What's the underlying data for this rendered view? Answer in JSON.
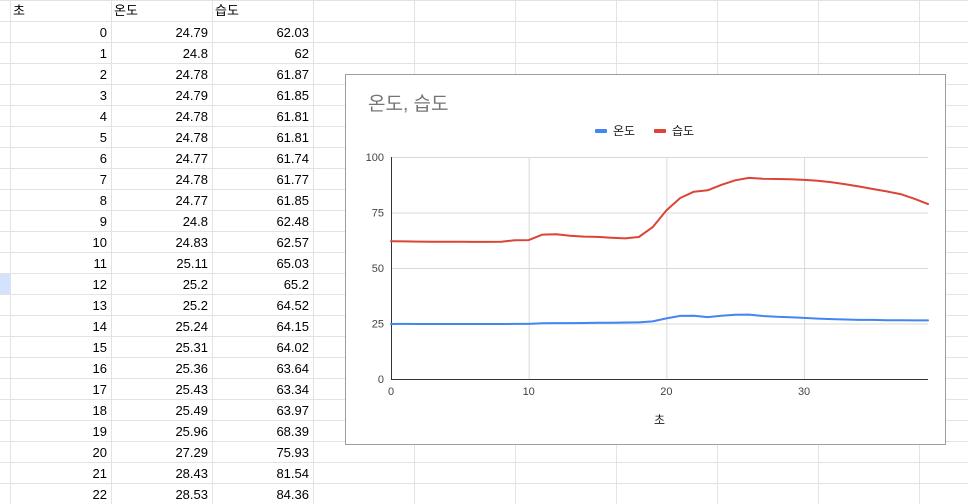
{
  "sheet": {
    "headers": [
      "초",
      "온도",
      "습도"
    ],
    "rows": [
      [
        "0",
        "24.79",
        "62.03"
      ],
      [
        "1",
        "24.8",
        "62"
      ],
      [
        "2",
        "24.78",
        "61.87"
      ],
      [
        "3",
        "24.79",
        "61.85"
      ],
      [
        "4",
        "24.78",
        "61.81"
      ],
      [
        "5",
        "24.78",
        "61.81"
      ],
      [
        "6",
        "24.77",
        "61.74"
      ],
      [
        "7",
        "24.78",
        "61.77"
      ],
      [
        "8",
        "24.77",
        "61.85"
      ],
      [
        "9",
        "24.8",
        "62.48"
      ],
      [
        "10",
        "24.83",
        "62.57"
      ],
      [
        "11",
        "25.11",
        "65.03"
      ],
      [
        "12",
        "25.2",
        "65.2"
      ],
      [
        "13",
        "25.2",
        "64.52"
      ],
      [
        "14",
        "25.24",
        "64.15"
      ],
      [
        "15",
        "25.31",
        "64.02"
      ],
      [
        "16",
        "25.36",
        "63.64"
      ],
      [
        "17",
        "25.43",
        "63.34"
      ],
      [
        "18",
        "25.49",
        "63.97"
      ],
      [
        "19",
        "25.96",
        "68.39"
      ],
      [
        "20",
        "27.29",
        "75.93"
      ],
      [
        "21",
        "28.43",
        "81.54"
      ],
      [
        "22",
        "28.53",
        "84.36"
      ]
    ],
    "selected_row_index": 12,
    "colors": {
      "grid": "#e2e3e3",
      "selected_row_header": "#d3e3fd"
    }
  },
  "chart_data": {
    "type": "line",
    "title": "온도, 습도",
    "xlabel": "초",
    "ylabel": "",
    "xlim": [
      0,
      39
    ],
    "ylim": [
      0,
      100
    ],
    "x_ticks": [
      0,
      10,
      20,
      30
    ],
    "y_ticks": [
      0,
      25,
      50,
      75,
      100
    ],
    "legend_position": "top",
    "grid": true,
    "series": [
      {
        "name": "온도",
        "color": "#4285f4",
        "x": [
          0,
          1,
          2,
          3,
          4,
          5,
          6,
          7,
          8,
          9,
          10,
          11,
          12,
          13,
          14,
          15,
          16,
          17,
          18,
          19,
          20,
          21,
          22,
          23,
          24,
          25,
          26,
          27,
          28,
          29,
          30,
          31,
          32,
          33,
          34,
          35,
          36,
          37,
          38,
          39
        ],
        "y": [
          24.79,
          24.8,
          24.78,
          24.79,
          24.78,
          24.78,
          24.77,
          24.78,
          24.77,
          24.8,
          24.83,
          25.11,
          25.2,
          25.2,
          25.24,
          25.31,
          25.36,
          25.43,
          25.49,
          25.96,
          27.29,
          28.43,
          28.53,
          27.9,
          28.5,
          28.9,
          29.0,
          28.4,
          28.0,
          27.8,
          27.5,
          27.2,
          27.0,
          26.8,
          26.6,
          26.6,
          26.5,
          26.5,
          26.4,
          26.4
        ]
      },
      {
        "name": "습도",
        "color": "#db4437",
        "x": [
          0,
          1,
          2,
          3,
          4,
          5,
          6,
          7,
          8,
          9,
          10,
          11,
          12,
          13,
          14,
          15,
          16,
          17,
          18,
          19,
          20,
          21,
          22,
          23,
          24,
          25,
          26,
          27,
          28,
          29,
          30,
          31,
          32,
          33,
          34,
          35,
          36,
          37,
          38,
          39
        ],
        "y": [
          62.03,
          62,
          61.87,
          61.85,
          61.81,
          61.81,
          61.74,
          61.77,
          61.85,
          62.48,
          62.57,
          65.03,
          65.2,
          64.52,
          64.15,
          64.02,
          63.64,
          63.34,
          63.97,
          68.39,
          75.93,
          81.54,
          84.36,
          85.0,
          87.5,
          89.5,
          90.6,
          90.2,
          90.1,
          90.0,
          89.7,
          89.3,
          88.6,
          87.7,
          86.7,
          85.6,
          84.5,
          83.3,
          81.2,
          78.8
        ]
      }
    ]
  }
}
